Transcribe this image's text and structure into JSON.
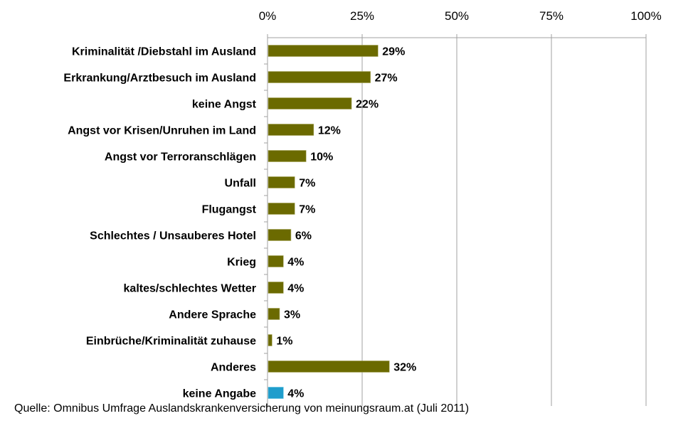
{
  "chart_data": {
    "type": "bar",
    "orientation": "horizontal",
    "categories": [
      "Kriminalität /Diebstahl im Ausland",
      "Erkrankung/Arztbesuch im Ausland",
      "keine Angst",
      "Angst vor Krisen/Unruhen im Land",
      "Angst vor Terroranschlägen",
      "Unfall",
      "Flugangst",
      "Schlechtes / Unsauberes Hotel",
      "Krieg",
      "kaltes/schlechtes Wetter",
      "Andere Sprache",
      "Einbrüche/Kriminalität zuhause",
      "Anderes",
      "keine Angabe"
    ],
    "values": [
      29,
      27,
      22,
      12,
      10,
      7,
      7,
      6,
      4,
      4,
      3,
      1,
      32,
      4
    ],
    "value_labels": [
      "29%",
      "27%",
      "22%",
      "12%",
      "10%",
      "7%",
      "7%",
      "6%",
      "4%",
      "4%",
      "3%",
      "1%",
      "32%",
      "4%"
    ],
    "xlim": [
      0,
      100
    ],
    "xticks": [
      0,
      25,
      50,
      75,
      100
    ],
    "xtick_labels": [
      "0%",
      "25%",
      "50%",
      "75%",
      "100%"
    ],
    "xaxis_position": "top",
    "grid": true,
    "colors": {
      "default": "#6b6a00",
      "highlight": "#1f9dcc",
      "grid": "#a0a0a0"
    },
    "highlight_index": 13
  },
  "source": "Quelle: Omnibus Umfrage Auslandskrankenversicherung von meinungsraum.at (Juli 2011)"
}
